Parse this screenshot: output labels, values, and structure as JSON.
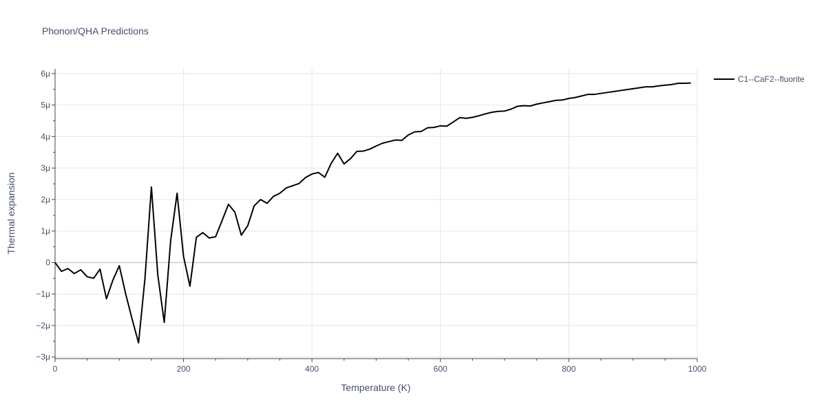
{
  "chart_data": {
    "type": "line",
    "title": "Phonon/QHA Predictions",
    "xlabel": "Temperature (K)",
    "ylabel": "Thermal expansion",
    "xlim": [
      0,
      1000
    ],
    "ylim": [
      -3.05,
      6.15
    ],
    "x_ticks": [
      0,
      200,
      400,
      600,
      800,
      1000
    ],
    "x_tick_labels": [
      "0",
      "200",
      "400",
      "600",
      "800",
      "1000"
    ],
    "y_ticks": [
      -3,
      -2,
      -1,
      0,
      1,
      2,
      3,
      4,
      5,
      6
    ],
    "y_tick_labels": [
      "−3μ",
      "−2μ",
      "−1μ",
      "0",
      "1μ",
      "2μ",
      "3μ",
      "4μ",
      "5μ",
      "6μ"
    ],
    "y_unit_note": "values in units of 1e-6",
    "grid": true,
    "legend_position": "top-right",
    "colors": {
      "line": "#000000",
      "grid": "#e5e5e5",
      "zero_line": "#cccccc",
      "text": "#444f6a"
    },
    "series": [
      {
        "name": "C1--CaF2--fluorite",
        "x": [
          0,
          10,
          20,
          30,
          40,
          50,
          60,
          70,
          80,
          90,
          100,
          110,
          120,
          130,
          140,
          150,
          160,
          170,
          180,
          190,
          200,
          210,
          220,
          230,
          240,
          250,
          260,
          270,
          280,
          290,
          300,
          310,
          320,
          330,
          340,
          350,
          360,
          370,
          380,
          390,
          400,
          410,
          420,
          430,
          440,
          450,
          460,
          470,
          480,
          490,
          500,
          510,
          520,
          530,
          540,
          550,
          560,
          570,
          580,
          590,
          600,
          610,
          620,
          630,
          640,
          650,
          660,
          670,
          680,
          690,
          700,
          710,
          720,
          730,
          740,
          750,
          760,
          770,
          780,
          790,
          800,
          810,
          820,
          830,
          840,
          850,
          860,
          870,
          880,
          890,
          900,
          910,
          920,
          930,
          940,
          950,
          960,
          970,
          980,
          990
        ],
        "y": [
          0.0,
          -0.28,
          -0.19,
          -0.35,
          -0.23,
          -0.45,
          -0.5,
          -0.21,
          -1.15,
          -0.56,
          -0.1,
          -1.0,
          -1.8,
          -2.55,
          -0.5,
          2.4,
          -0.4,
          -1.9,
          0.7,
          2.2,
          0.2,
          -0.75,
          0.8,
          0.95,
          0.78,
          0.82,
          1.33,
          1.85,
          1.6,
          0.87,
          1.17,
          1.8,
          2.0,
          1.88,
          2.1,
          2.2,
          2.37,
          2.44,
          2.51,
          2.7,
          2.81,
          2.86,
          2.71,
          3.15,
          3.47,
          3.13,
          3.3,
          3.53,
          3.54,
          3.6,
          3.7,
          3.79,
          3.84,
          3.89,
          3.88,
          4.05,
          4.15,
          4.16,
          4.28,
          4.29,
          4.34,
          4.33,
          4.46,
          4.6,
          4.58,
          4.61,
          4.66,
          4.72,
          4.77,
          4.8,
          4.81,
          4.87,
          4.96,
          4.98,
          4.97,
          5.03,
          5.07,
          5.11,
          5.15,
          5.16,
          5.21,
          5.24,
          5.29,
          5.34,
          5.34,
          5.37,
          5.4,
          5.43,
          5.46,
          5.49,
          5.52,
          5.55,
          5.58,
          5.58,
          5.61,
          5.63,
          5.65,
          5.69,
          5.69,
          5.7
        ]
      }
    ]
  }
}
